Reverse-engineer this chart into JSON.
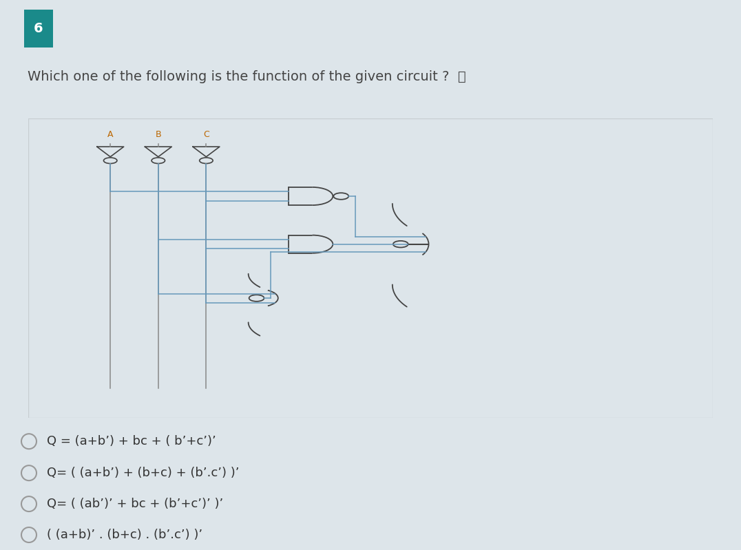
{
  "question_number": "6",
  "question_number_bg": "#1a8a8a",
  "question_number_color": "#ffffff",
  "question_text": "Which one of the following is the function of the given circuit ?  📣",
  "header_bg": "#dde5ea",
  "circuit_bg": "#ffffff",
  "circuit_border": "#c8ced2",
  "wire_color": "#6699bb",
  "gate_color": "#444444",
  "label_color": "#bb6600",
  "options": [
    "Q = (a+b’) + bc + ( b’+c’)’",
    "Q= ( (a+b’) + (b+c) + (b’.c’) )’",
    "Q= ( (ab’)’ + bc + (b’+c’)’ )’",
    "( (a+b)’ . (b+c) . (b’.c’) )’"
  ],
  "option_text_color": "#333333",
  "overall_bg": "#dde5ea",
  "body_bg": "#dde5ea"
}
